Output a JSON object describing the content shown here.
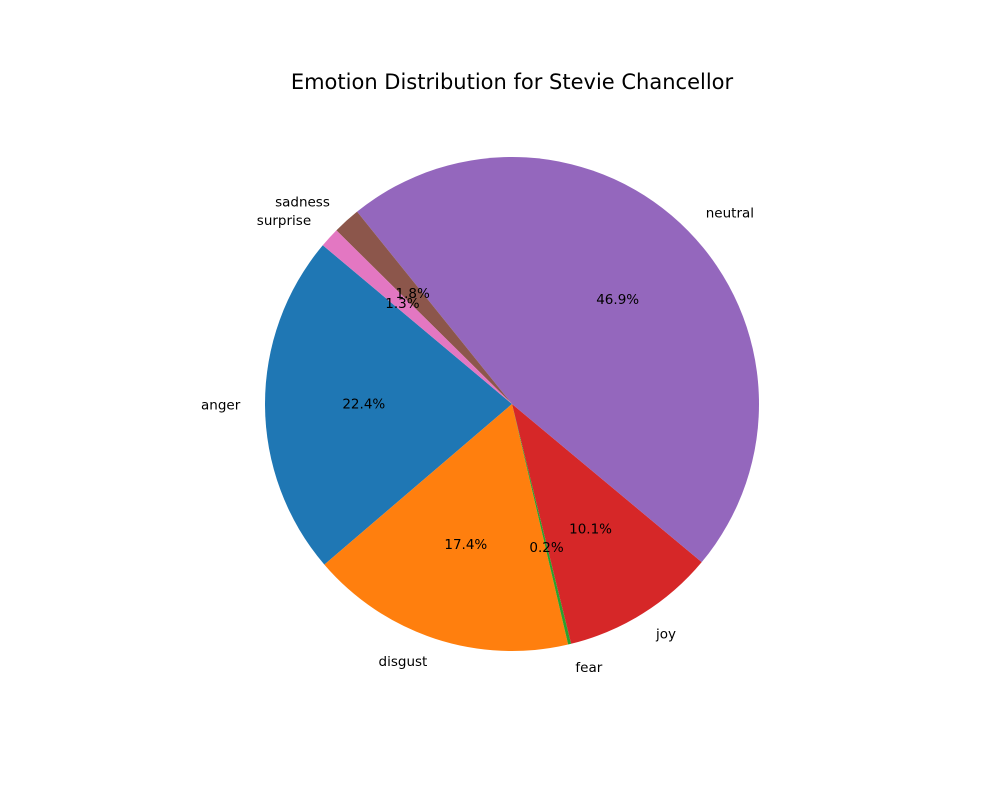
{
  "chart_data": {
    "type": "pie",
    "title": "Emotion Distribution for Stevie Chancellor",
    "categories": [
      "anger",
      "disgust",
      "fear",
      "joy",
      "neutral",
      "sadness",
      "surprise"
    ],
    "values": [
      22.4,
      17.4,
      0.2,
      10.1,
      46.9,
      1.8,
      1.3
    ],
    "value_labels": [
      "22.4%",
      "17.4%",
      "0.2%",
      "10.1%",
      "46.9%",
      "1.8%",
      "1.3%"
    ],
    "colors": [
      "#1f77b4",
      "#ff7f0e",
      "#2ca02c",
      "#d62728",
      "#9467bd",
      "#8c564b",
      "#e377c2"
    ],
    "start_angle_deg": 140,
    "direction": "counterclockwise",
    "legend": "none"
  }
}
